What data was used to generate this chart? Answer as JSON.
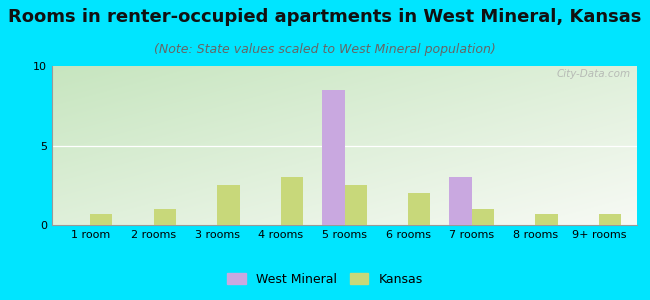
{
  "categories": [
    "1 room",
    "2 rooms",
    "3 rooms",
    "4 rooms",
    "5 rooms",
    "6 rooms",
    "7 rooms",
    "8 rooms",
    "9+ rooms"
  ],
  "west_mineral": [
    0,
    0,
    0,
    0,
    8.5,
    0,
    3.0,
    0,
    0
  ],
  "kansas": [
    0.7,
    1.0,
    2.5,
    3.0,
    2.5,
    2.0,
    1.0,
    0.7,
    0.7
  ],
  "west_mineral_color": "#c9a8e0",
  "kansas_color": "#c8d87a",
  "title": "Rooms in renter-occupied apartments in West Mineral, Kansas",
  "subtitle": "(Note: State values scaled to West Mineral population)",
  "outer_bg": "#00e5ff",
  "ylim": [
    0,
    10
  ],
  "yticks": [
    0,
    5,
    10
  ],
  "bar_width": 0.35,
  "legend_labels": [
    "West Mineral",
    "Kansas"
  ],
  "watermark": "City-Data.com",
  "title_fontsize": 13,
  "subtitle_fontsize": 9,
  "tick_fontsize": 8
}
